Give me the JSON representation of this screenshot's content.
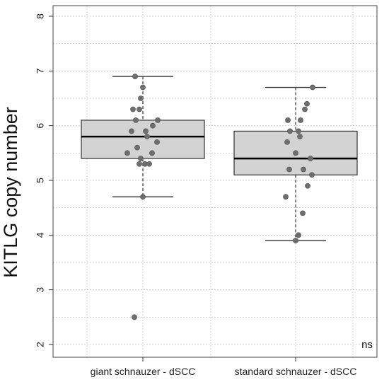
{
  "chart_data": {
    "type": "box",
    "categories": [
      "giant schnauzer - dSCC",
      "standard schnauzer - dSCC"
    ],
    "ylabel": "KITLG copy number",
    "xlabel": "",
    "title": "",
    "ylim": [
      2,
      8
    ],
    "yticks": [
      2,
      3,
      4,
      5,
      6,
      7,
      8
    ],
    "grid": true,
    "annotation": "ns",
    "box_fill": "#d3d3d3",
    "point_color": "#6e6e6e",
    "boxes": [
      {
        "q1": 5.4,
        "median": 5.8,
        "q3": 6.1,
        "whisker_low": 4.7,
        "whisker_high": 6.9
      },
      {
        "q1": 5.1,
        "median": 5.4,
        "q3": 5.9,
        "whisker_low": 3.9,
        "whisker_high": 6.7
      }
    ],
    "points": [
      [
        2.5,
        4.7,
        5.3,
        5.3,
        5.3,
        5.4,
        5.5,
        5.5,
        5.6,
        5.7,
        5.8,
        5.9,
        5.9,
        6.0,
        6.1,
        6.1,
        6.3,
        6.3,
        6.5,
        6.7,
        6.9
      ],
      [
        3.9,
        4.0,
        4.4,
        4.7,
        4.9,
        5.1,
        5.2,
        5.2,
        5.4,
        5.5,
        5.7,
        5.8,
        5.9,
        5.9,
        6.1,
        6.1,
        6.3,
        6.4,
        6.7
      ]
    ]
  }
}
